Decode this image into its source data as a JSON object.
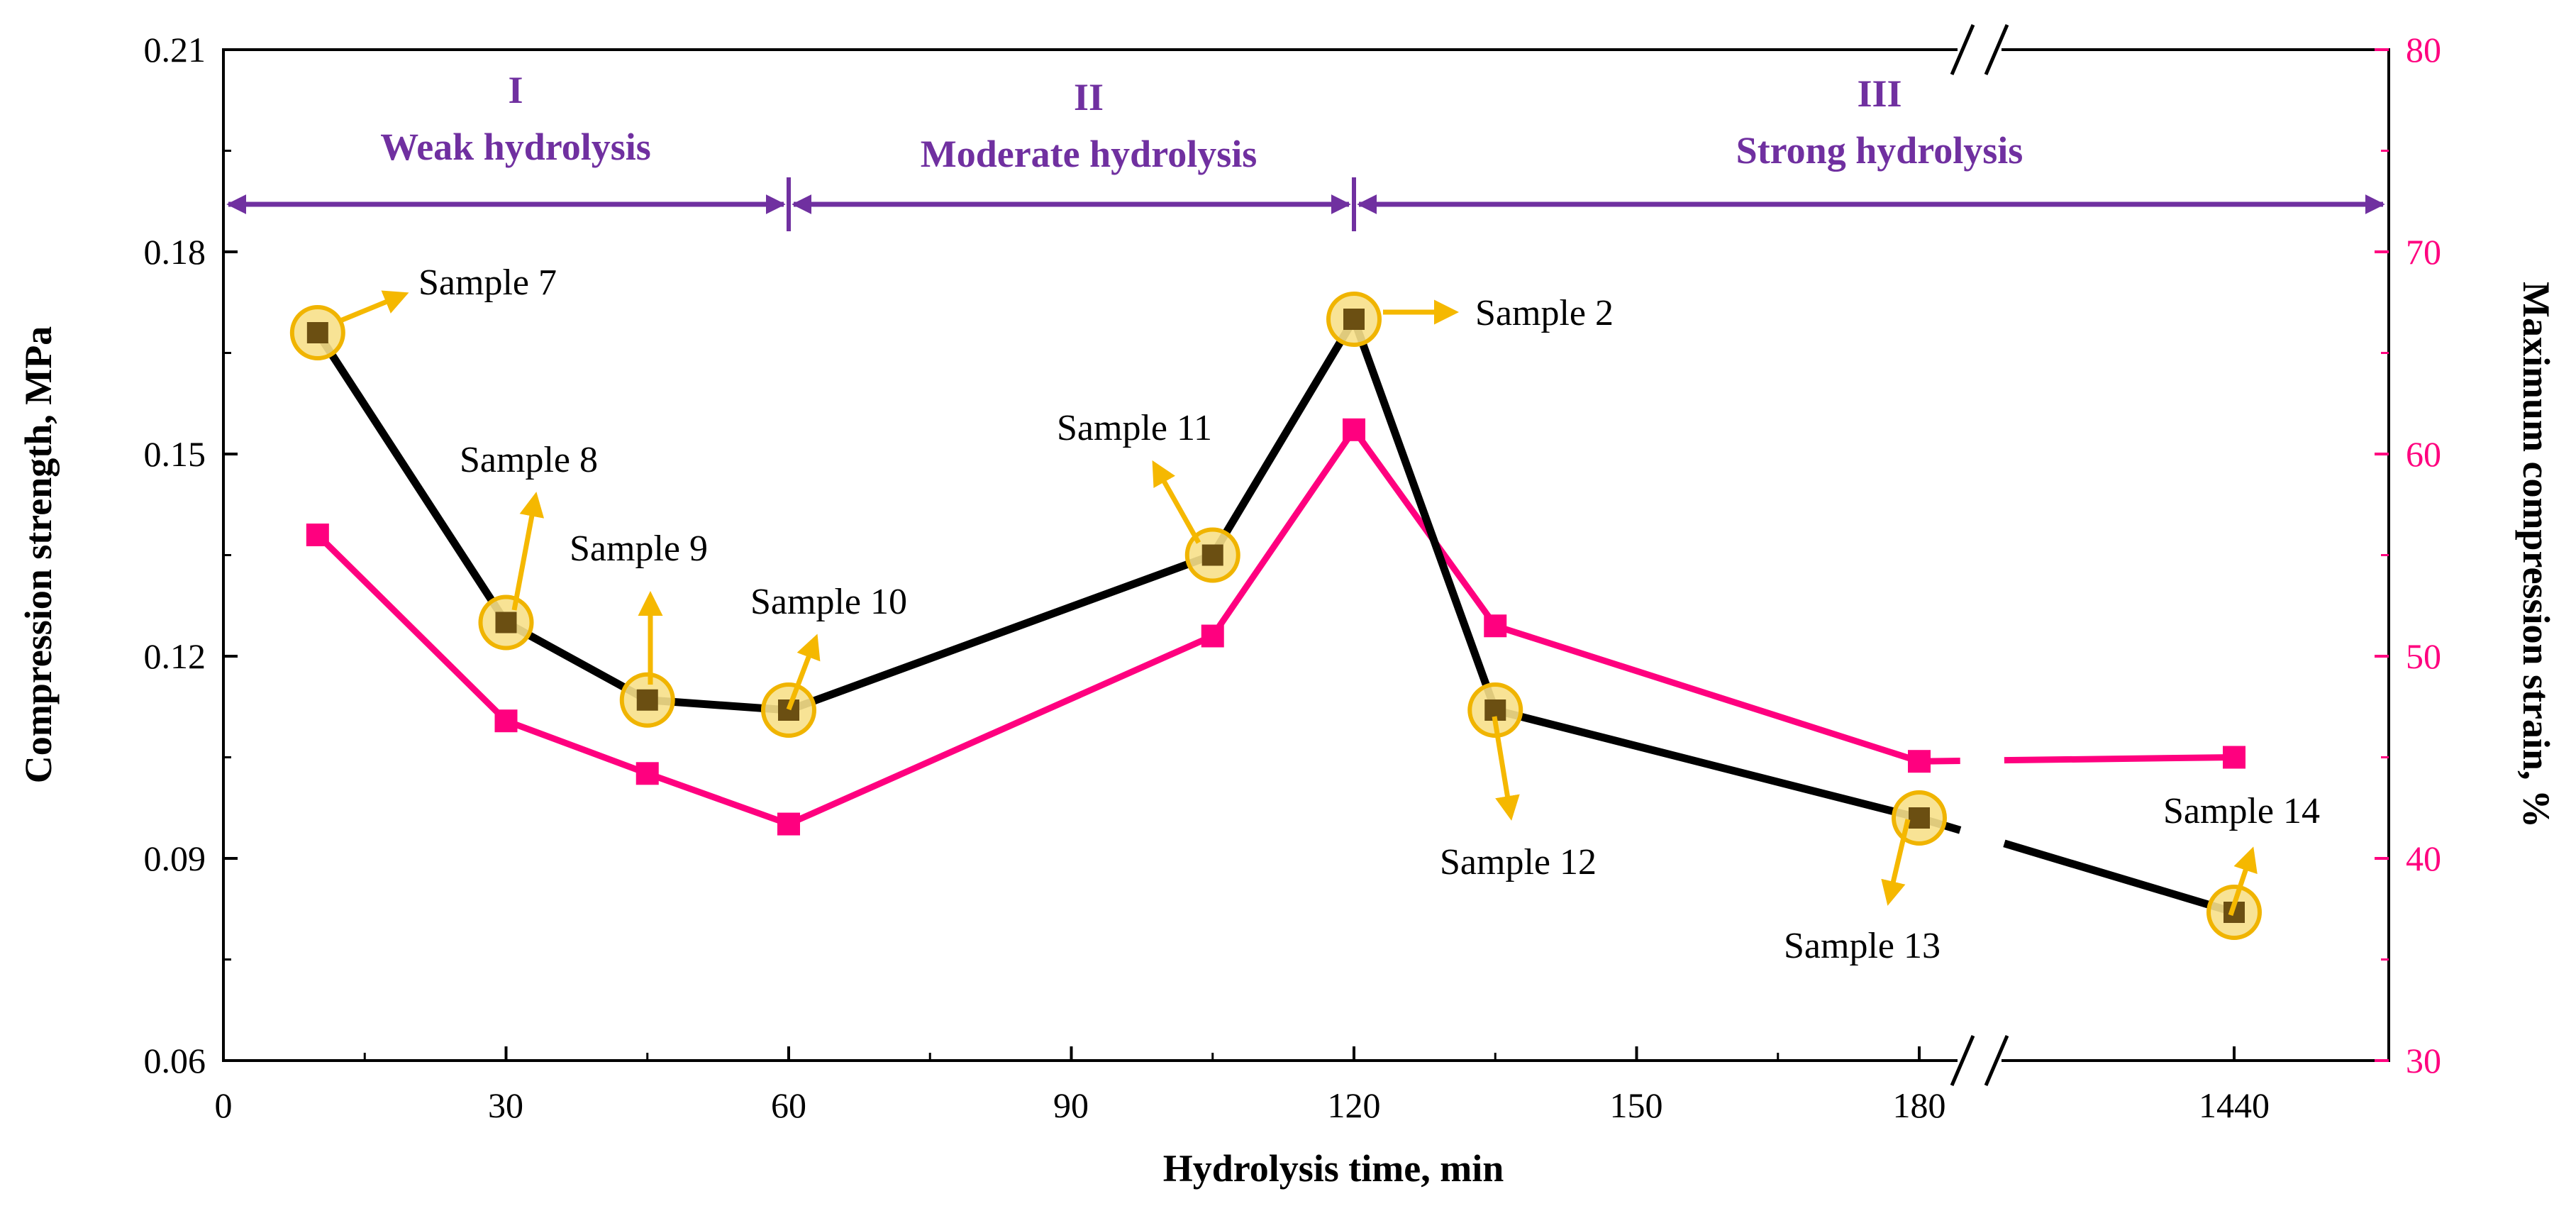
{
  "chart_data": {
    "type": "line",
    "x_axis": {
      "title": "Hydrolysis time, min",
      "ticks": [
        "0",
        "30",
        "60",
        "90",
        "120",
        "150",
        "180",
        "1440"
      ],
      "broken_axis": true
    },
    "y_axis_left": {
      "title": "Compression strength, MPa",
      "range": [
        0.06,
        0.21
      ],
      "ticks": [
        "0.06",
        "0.09",
        "0.12",
        "0.15",
        "0.18",
        "0.21"
      ]
    },
    "y_axis_right": {
      "title": "Maximum compression strain, %",
      "range": [
        30,
        80
      ],
      "ticks": [
        "30",
        "40",
        "50",
        "60",
        "70",
        "80"
      ]
    },
    "regions": [
      {
        "numeral": "I",
        "name": "Weak hydrolysis",
        "x_start": 0,
        "x_end": 60
      },
      {
        "numeral": "II",
        "name": "Moderate hydrolysis",
        "x_start": 60,
        "x_end": 120
      },
      {
        "numeral": "III",
        "name": "Strong hydrolysis",
        "x_start": 120,
        "x_end": "end"
      }
    ],
    "series": [
      {
        "name": "Compression strength",
        "axis": "left",
        "color": "#000000",
        "marker_color": "#6b4f12",
        "points": [
          {
            "x": 10,
            "y": 0.168
          },
          {
            "x": 30,
            "y": 0.125
          },
          {
            "x": 45,
            "y": 0.1135
          },
          {
            "x": 60,
            "y": 0.112
          },
          {
            "x": 105,
            "y": 0.135
          },
          {
            "x": 120,
            "y": 0.17
          },
          {
            "x": 135,
            "y": 0.112
          },
          {
            "x": 180,
            "y": 0.096
          },
          {
            "x": 1440,
            "y": 0.082
          }
        ]
      },
      {
        "name": "Maximum compression strain",
        "axis": "right",
        "color": "#ff007f",
        "points": [
          {
            "x": 10,
            "y": 56.0
          },
          {
            "x": 30,
            "y": 46.8
          },
          {
            "x": 45,
            "y": 44.2
          },
          {
            "x": 60,
            "y": 41.7
          },
          {
            "x": 105,
            "y": 51.0
          },
          {
            "x": 120,
            "y": 61.2
          },
          {
            "x": 135,
            "y": 51.5
          },
          {
            "x": 180,
            "y": 44.8
          },
          {
            "x": 1440,
            "y": 45.0
          }
        ]
      }
    ],
    "annotations": [
      {
        "label": "Sample 7",
        "x": 10,
        "direction": "up-right"
      },
      {
        "label": "Sample 8",
        "x": 30,
        "direction": "up"
      },
      {
        "label": "Sample 9",
        "x": 45,
        "direction": "up"
      },
      {
        "label": "Sample 10",
        "x": 60,
        "direction": "up-right"
      },
      {
        "label": "Sample 11",
        "x": 105,
        "direction": "up-left"
      },
      {
        "label": "Sample 2",
        "x": 120,
        "direction": "right"
      },
      {
        "label": "Sample 12",
        "x": 135,
        "direction": "down"
      },
      {
        "label": "Sample 13",
        "x": 180,
        "direction": "down-left"
      },
      {
        "label": "Sample 14",
        "x": 1440,
        "direction": "up-right"
      }
    ],
    "colors": {
      "region": "#7030a0",
      "strain": "#ff007f",
      "strength_line": "#000000",
      "strength_marker": "#6b4f12",
      "highlight_fill": "#f7e08a",
      "highlight_stroke": "#f0b400",
      "arrow": "#f5b800"
    }
  }
}
